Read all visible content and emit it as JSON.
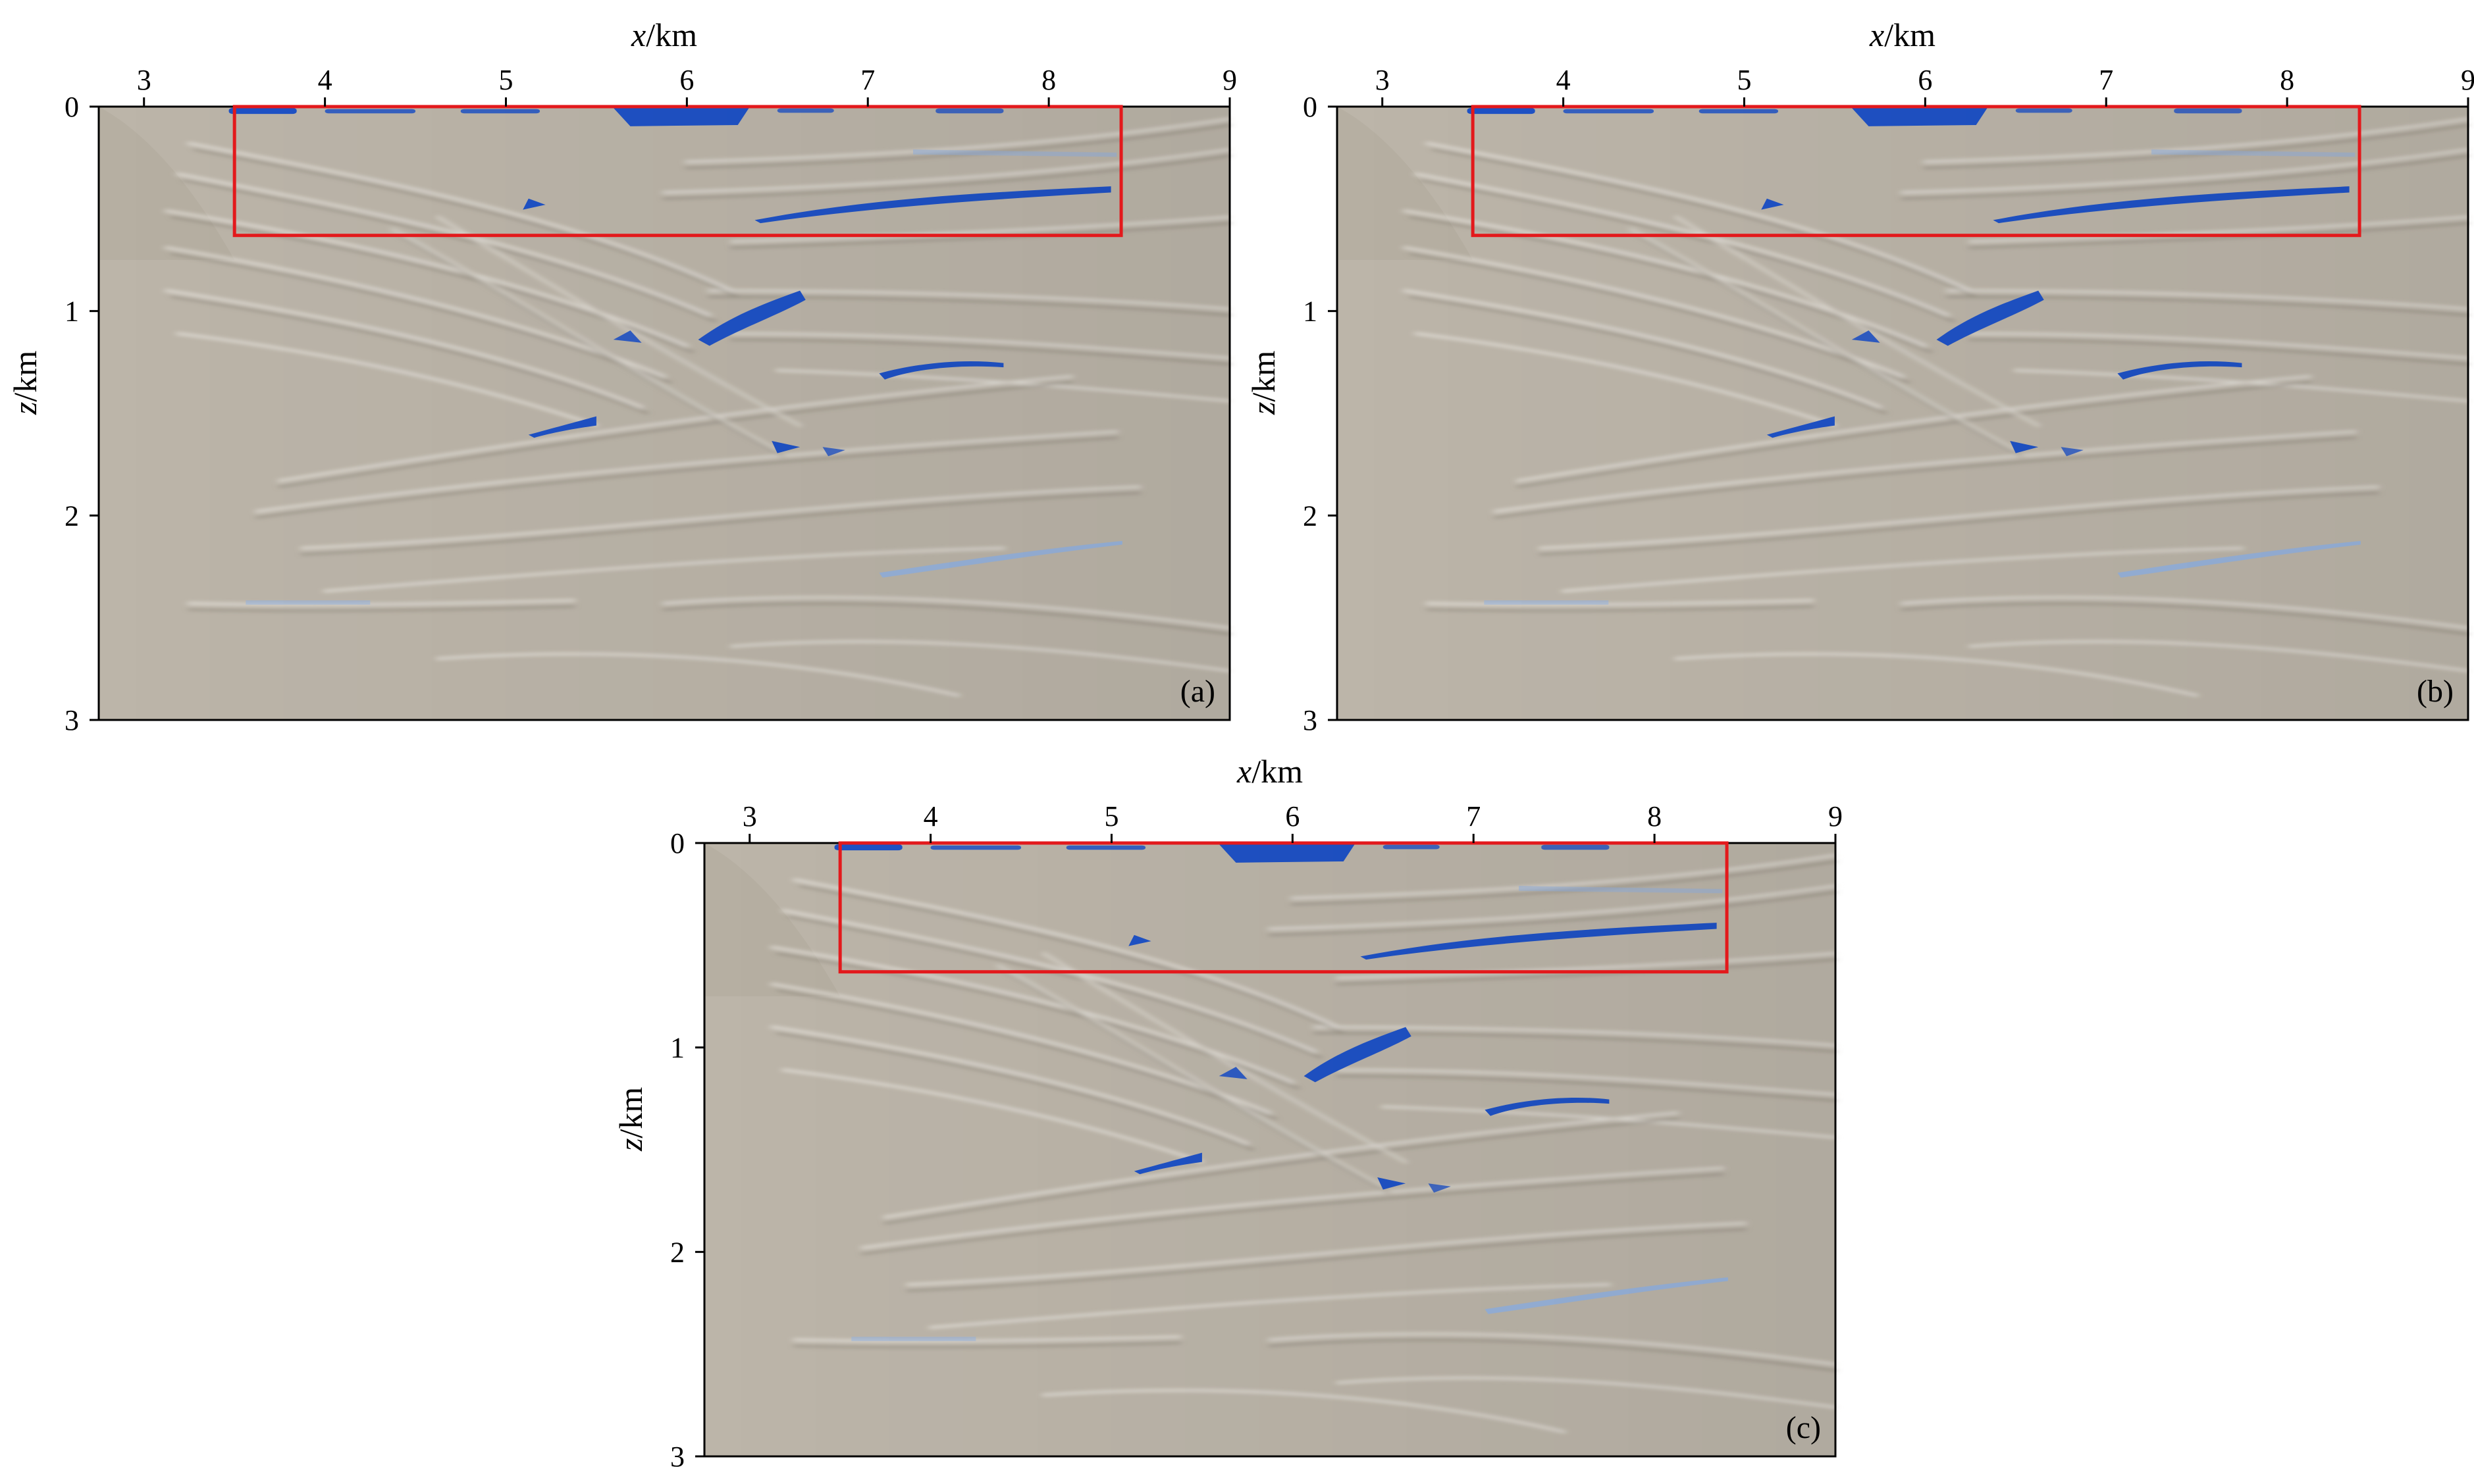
{
  "panels": [
    {
      "id": "a",
      "label": "(a)",
      "x_axis": {
        "label_var": "x",
        "label_unit": "/km",
        "ticks": [
          "3",
          "4",
          "5",
          "6",
          "7",
          "8",
          "9"
        ],
        "range": [
          2.75,
          9.0
        ]
      },
      "z_axis": {
        "label_var": "z",
        "label_unit": "/km",
        "ticks": [
          "0",
          "1",
          "2",
          "3"
        ],
        "range": [
          0,
          3
        ]
      },
      "highlight_box": {
        "x": [
          3.5,
          8.4
        ],
        "z": [
          0.0,
          0.63
        ]
      }
    },
    {
      "id": "b",
      "label": "(b)",
      "x_axis": {
        "label_var": "x",
        "label_unit": "/km",
        "ticks": [
          "3",
          "4",
          "5",
          "6",
          "7",
          "8",
          "9"
        ],
        "range": [
          2.75,
          9.0
        ]
      },
      "z_axis": {
        "label_var": "z",
        "label_unit": "/km",
        "ticks": [
          "0",
          "1",
          "2",
          "3"
        ],
        "range": [
          0,
          3
        ]
      },
      "highlight_box": {
        "x": [
          3.5,
          8.4
        ],
        "z": [
          0.0,
          0.63
        ]
      }
    },
    {
      "id": "c",
      "label": "(c)",
      "x_axis": {
        "label_var": "x",
        "label_unit": "/km",
        "ticks": [
          "3",
          "4",
          "5",
          "6",
          "7",
          "8",
          "9"
        ],
        "range": [
          2.75,
          9.0
        ]
      },
      "z_axis": {
        "label_var": "z",
        "label_unit": "/km",
        "ticks": [
          "0",
          "1",
          "2",
          "3"
        ],
        "range": [
          0,
          3
        ]
      },
      "highlight_box": {
        "x": [
          3.5,
          8.4
        ],
        "z": [
          0.0,
          0.63
        ]
      }
    }
  ],
  "colors": {
    "background": "#bcb5a9",
    "reflector_strong": "#1f52c6",
    "reflector_light": "#8fb3e8",
    "highlight": "#e3191c",
    "frame": "#000000"
  }
}
